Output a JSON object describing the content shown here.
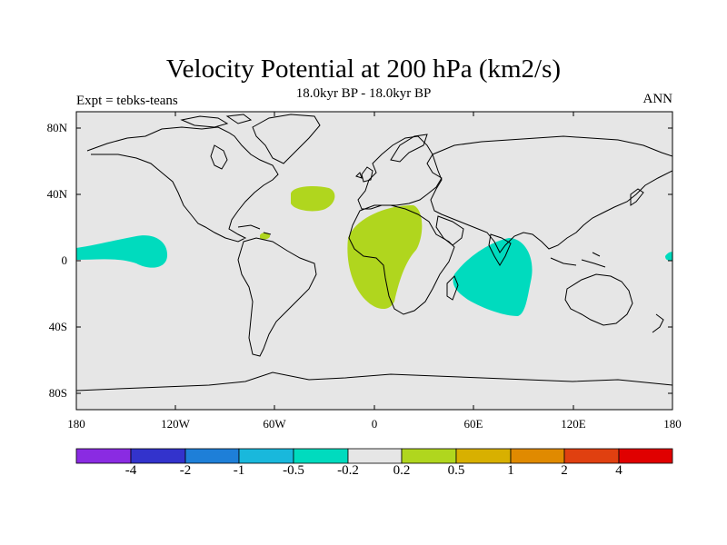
{
  "title": "Velocity Potential at 200 hPa (km2/s)",
  "subtitle": "18.0kyr BP - 18.0kyr BP",
  "left_label": "Expt = tebks-teans",
  "right_label": "ANN",
  "lat_labels": [
    "80N",
    "40N",
    "0",
    "40S",
    "80S"
  ],
  "lon_labels": [
    "180",
    "120W",
    "60W",
    "0",
    "60E",
    "120E",
    "180"
  ],
  "colorbar": {
    "colors": [
      "#8a2be2",
      "#3333cc",
      "#1e7fd8",
      "#19b8dc",
      "#00dbbe",
      "#e6e6e6",
      "#b0d61e",
      "#d8b000",
      "#e08a00",
      "#e04010",
      "#e00000"
    ],
    "labels": [
      "-4",
      "-2",
      "-1",
      "-0.5",
      "-0.2",
      "0.2",
      "0.5",
      "1",
      "2",
      "4"
    ]
  },
  "colors": {
    "background": "#e6e6e6",
    "positive": "#b0d61e",
    "negative": "#00dbbe"
  }
}
